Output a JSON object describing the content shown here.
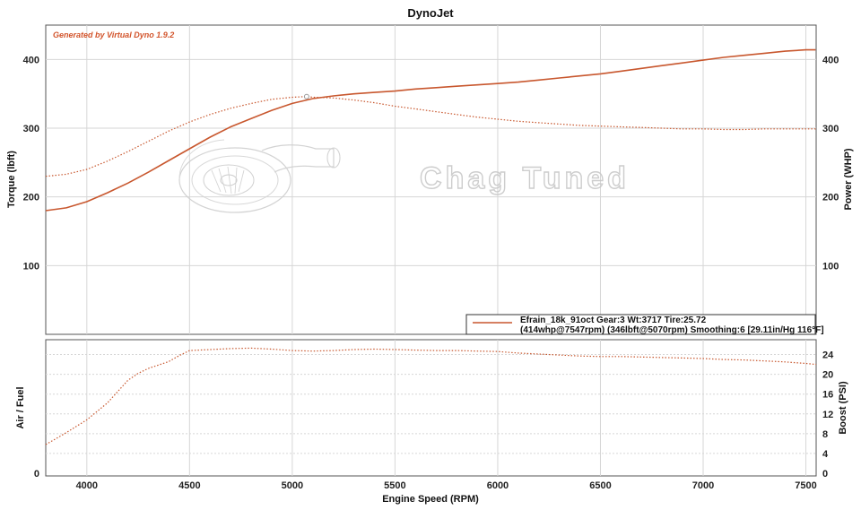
{
  "title": "DynoJet",
  "generator": "Generated by Virtual Dyno 1.9.2",
  "watermark": "Chag Tuned",
  "colors": {
    "curve": "#c8572e",
    "grid": "#d6d6d6",
    "frame": "#555555"
  },
  "legend": {
    "line1": "Efrain_18k_91oct Gear:3 Wt:3717 Tire:25.72",
    "line2": "(414whp@7547rpm) (346lbft@5070rpm) Smoothing:6 [29.11in/Hg 116°F]"
  },
  "chart_data": [
    {
      "type": "line",
      "title": "DynoJet",
      "xlabel": "Engine Speed (RPM)",
      "ylabel": "Torque (lbft)",
      "y2label": "Power (WHP)",
      "xlim": [
        3800,
        7550
      ],
      "ylim": [
        0,
        450
      ],
      "xticks": [
        4000,
        4500,
        5000,
        5500,
        6000,
        6500,
        7000,
        7500
      ],
      "yticks": [
        100,
        200,
        300,
        400
      ],
      "grid": true,
      "legend_position": "bottom-right",
      "series": [
        {
          "name": "Efrain_18k_91oct Gear:3 Wt:3717 Tire:25.72",
          "measure": "power",
          "line": "solid",
          "x": [
            3800,
            3900,
            4000,
            4100,
            4200,
            4300,
            4400,
            4500,
            4600,
            4700,
            4800,
            4900,
            5000,
            5100,
            5200,
            5300,
            5400,
            5500,
            5600,
            5700,
            5800,
            5900,
            6000,
            6100,
            6200,
            6300,
            6400,
            6500,
            6600,
            6700,
            6800,
            6900,
            7000,
            7100,
            7200,
            7300,
            7400,
            7500,
            7547
          ],
          "y": [
            180,
            184,
            193,
            206,
            220,
            236,
            253,
            270,
            287,
            302,
            314,
            326,
            336,
            343,
            347,
            350,
            352,
            354,
            357,
            359,
            361,
            363,
            365,
            367,
            370,
            373,
            376,
            379,
            383,
            387,
            391,
            395,
            399,
            403,
            406,
            409,
            412,
            414,
            414
          ]
        },
        {
          "name": "Efrain_18k_91oct Gear:3 Wt:3717 Tire:25.72",
          "measure": "torque",
          "line": "dotted",
          "x": [
            3800,
            3900,
            4000,
            4100,
            4200,
            4300,
            4400,
            4500,
            4600,
            4700,
            4800,
            4900,
            5000,
            5070,
            5100,
            5200,
            5300,
            5400,
            5500,
            5600,
            5700,
            5800,
            5900,
            6000,
            6100,
            6200,
            6300,
            6400,
            6500,
            6600,
            6700,
            6800,
            6900,
            7000,
            7100,
            7200,
            7300,
            7400,
            7500,
            7550
          ],
          "y": [
            230,
            233,
            240,
            252,
            266,
            281,
            296,
            309,
            320,
            329,
            336,
            342,
            345,
            346,
            345,
            344,
            341,
            337,
            332,
            328,
            324,
            320,
            316,
            313,
            310,
            308,
            306,
            304,
            303,
            302,
            301,
            300,
            299,
            299,
            298,
            298,
            299,
            299,
            299,
            299
          ]
        }
      ]
    },
    {
      "type": "line",
      "xlabel": "Engine Speed (RPM)",
      "ylabel": "Air / Fuel",
      "y2label": "Boost (PSI)",
      "xlim": [
        3800,
        7550
      ],
      "ylim": [
        0,
        27
      ],
      "yticks_left": [
        0
      ],
      "yticks_right": [
        0,
        4,
        8,
        12,
        16,
        20,
        24
      ],
      "grid": true,
      "series": [
        {
          "name": "Boost",
          "line": "dotted",
          "x": [
            3800,
            3900,
            4000,
            4100,
            4200,
            4250,
            4300,
            4400,
            4450,
            4500,
            4600,
            4700,
            4800,
            4900,
            5000,
            5100,
            5200,
            5300,
            5400,
            5500,
            5600,
            5700,
            5800,
            5900,
            6000,
            6100,
            6200,
            6300,
            6400,
            6500,
            6600,
            6700,
            6800,
            6900,
            7000,
            7100,
            7200,
            7300,
            7400,
            7500,
            7550
          ],
          "y": [
            5.8,
            8.2,
            10.8,
            14.2,
            18.8,
            20.2,
            21.2,
            22.6,
            23.8,
            24.8,
            25.0,
            25.2,
            25.3,
            25.1,
            24.8,
            24.7,
            24.8,
            25.0,
            25.1,
            25.0,
            24.9,
            24.8,
            24.8,
            24.7,
            24.6,
            24.3,
            24.1,
            23.9,
            23.7,
            23.6,
            23.6,
            23.5,
            23.4,
            23.3,
            23.2,
            23.0,
            22.9,
            22.7,
            22.5,
            22.2,
            22.0
          ]
        }
      ]
    }
  ]
}
